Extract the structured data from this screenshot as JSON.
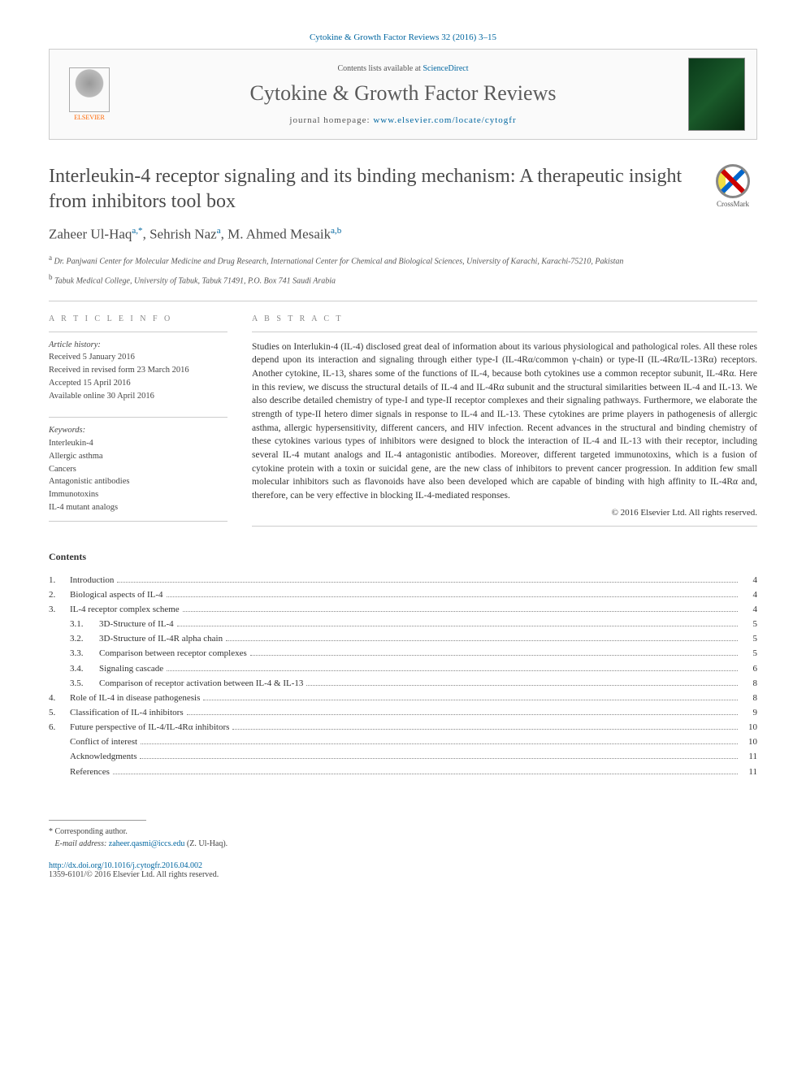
{
  "citation": "Cytokine & Growth Factor Reviews 32 (2016) 3–15",
  "header": {
    "contents_prefix": "Contents lists available at ",
    "contents_link": "ScienceDirect",
    "journal_name": "Cytokine & Growth Factor Reviews",
    "homepage_prefix": "journal homepage: ",
    "homepage_url": "www.elsevier.com/locate/cytogfr",
    "elsevier_label": "ELSEVIER"
  },
  "article": {
    "title": "Interleukin-4 receptor signaling and its binding mechanism: A therapeutic insight from inhibitors tool box",
    "crossmark_label": "CrossMark",
    "authors_html": "Zaheer Ul-Haq<sup>a,*</sup>, Sehrish Naz<sup>a</sup>, M. Ahmed Mesaik<sup>a,b</sup>",
    "affiliations": [
      {
        "sup": "a",
        "text": "Dr. Panjwani Center for Molecular Medicine and Drug Research, International Center for Chemical and Biological Sciences, University of Karachi, Karachi-75210, Pakistan"
      },
      {
        "sup": "b",
        "text": "Tabuk Medical College, University of Tabuk, Tabuk 71491, P.O. Box 741 Saudi Arabia"
      }
    ]
  },
  "info": {
    "section_label": "A R T I C L E   I N F O",
    "history_label": "Article history:",
    "history": [
      "Received 5 January 2016",
      "Received in revised form 23 March 2016",
      "Accepted 15 April 2016",
      "Available online 30 April 2016"
    ],
    "keywords_label": "Keywords:",
    "keywords": [
      "Interleukin-4",
      "Allergic asthma",
      "Cancers",
      "Antagonistic antibodies",
      "Immunotoxins",
      "IL-4 mutant analogs"
    ]
  },
  "abstract": {
    "section_label": "A B S T R A C T",
    "text": "Studies on Interlukin-4 (IL-4) disclosed great deal of information about its various physiological and pathological roles. All these roles depend upon its interaction and signaling through either type-I (IL-4Rα/common γ-chain) or type-II (IL-4Rα/IL-13Rα) receptors. Another cytokine, IL-13, shares some of the functions of IL-4, because both cytokines use a common receptor subunit, IL-4Rα. Here in this review, we discuss the structural details of IL-4 and IL-4Rα subunit and the structural similarities between IL-4 and IL-13. We also describe detailed chemistry of type-I and type-II receptor complexes and their signaling pathways. Furthermore, we elaborate the strength of type-II hetero dimer signals in response to IL-4 and IL-13. These cytokines are prime players in pathogenesis of allergic asthma, allergic hypersensitivity, different cancers, and HIV infection. Recent advances in the structural and binding chemistry of these cytokines various types of inhibitors were designed to block the interaction of IL-4 and IL-13 with their receptor, including several IL-4 mutant analogs and IL-4 antagonistic antibodies. Moreover, different targeted immunotoxins, which is a fusion of cytokine protein with a toxin or suicidal gene, are the new class of inhibitors to prevent cancer progression. In addition few small molecular inhibitors such as flavonoids have also been developed which are capable of binding with high affinity to IL-4Rα and, therefore, can be very effective in blocking IL-4-mediated responses.",
    "copyright": "© 2016 Elsevier Ltd. All rights reserved."
  },
  "contents": {
    "heading": "Contents",
    "items": [
      {
        "num": "1.",
        "title": "Introduction",
        "page": "4",
        "level": 0
      },
      {
        "num": "2.",
        "title": "Biological aspects of IL-4",
        "page": "4",
        "level": 0
      },
      {
        "num": "3.",
        "title": "IL-4 receptor complex scheme",
        "page": "4",
        "level": 0
      },
      {
        "num": "3.1.",
        "title": "3D-Structure of IL-4",
        "page": "5",
        "level": 1
      },
      {
        "num": "3.2.",
        "title": "3D-Structure of IL-4R alpha chain",
        "page": "5",
        "level": 1
      },
      {
        "num": "3.3.",
        "title": "Comparison between receptor complexes",
        "page": "5",
        "level": 1
      },
      {
        "num": "3.4.",
        "title": "Signaling cascade",
        "page": "6",
        "level": 1
      },
      {
        "num": "3.5.",
        "title": "Comparison of receptor activation between IL-4 & IL-13",
        "page": "8",
        "level": 1
      },
      {
        "num": "4.",
        "title": "Role of IL-4 in disease pathogenesis",
        "page": "8",
        "level": 0
      },
      {
        "num": "5.",
        "title": "Classification of IL-4 inhibitors",
        "page": "9",
        "level": 0
      },
      {
        "num": "6.",
        "title": "Future perspective of IL-4/IL-4Rα inhibitors",
        "page": "10",
        "level": 0
      },
      {
        "num": "",
        "title": "Conflict of interest",
        "page": "10",
        "level": 0,
        "indent": true
      },
      {
        "num": "",
        "title": "Acknowledgments",
        "page": "11",
        "level": 0,
        "indent": true
      },
      {
        "num": "",
        "title": "References",
        "page": "11",
        "level": 0,
        "indent": true
      }
    ]
  },
  "footer": {
    "corresponding_label": "* Corresponding author.",
    "email_label": "E-mail address:",
    "email": "zaheer.qasmi@iccs.edu",
    "email_suffix": "(Z. Ul-Haq).",
    "doi": "http://dx.doi.org/10.1016/j.cytogfr.2016.04.002",
    "issn_line": "1359-6101/© 2016 Elsevier Ltd. All rights reserved."
  },
  "colors": {
    "link": "#0066a0",
    "text": "#333333",
    "muted": "#888888",
    "border": "#cccccc"
  }
}
